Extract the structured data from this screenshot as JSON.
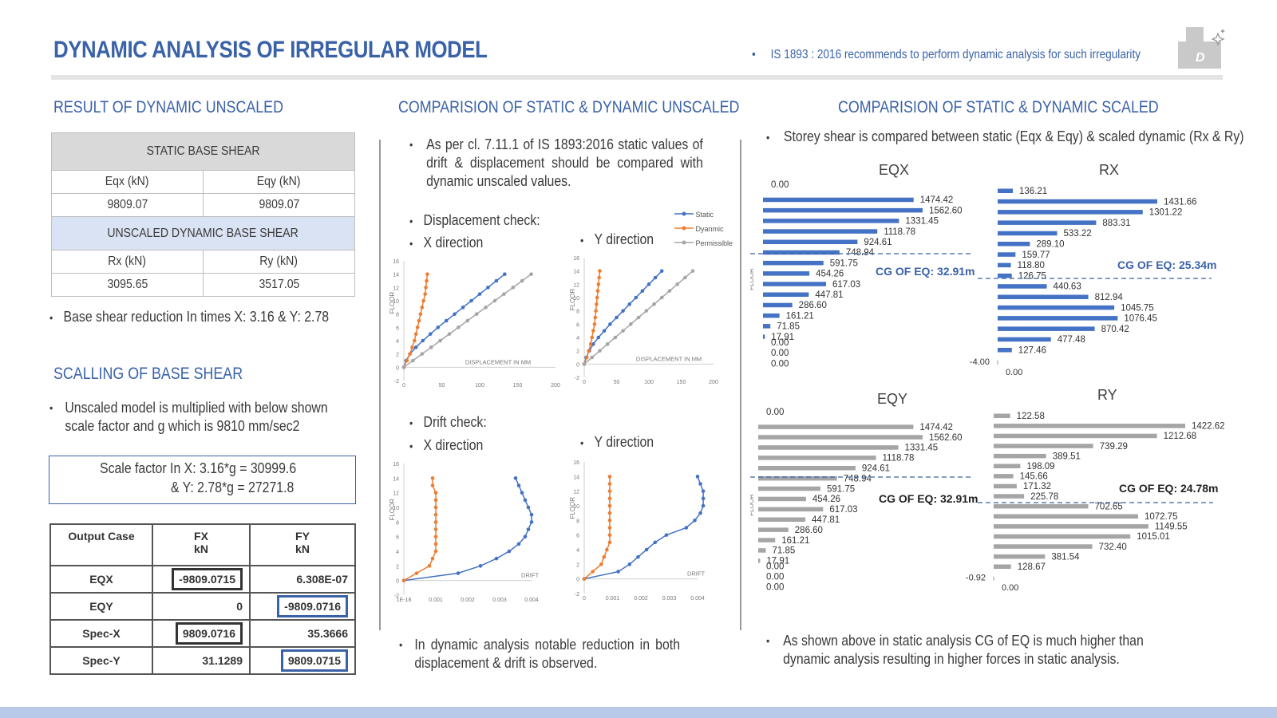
{
  "header": {
    "title": "DYNAMIC ANALYSIS OF IRREGULAR MODEL",
    "note": "IS 1893 : 2016 recommends to perform dynamic analysis for such irregularity",
    "logo_letter": "D"
  },
  "left": {
    "heading": "RESULT OF DYNAMIC UNSCALED",
    "static_header": "STATIC BASE SHEAR",
    "eqx_label": "Eqx (kN)",
    "eqy_label": "Eqy (kN)",
    "eqx_value": "9809.07",
    "eqy_value": "9809.07",
    "dyn_header": "UNSCALED DYNAMIC BASE SHEAR",
    "rx_label": "Rx (kN)",
    "ry_label": "Ry (kN)",
    "rx_value": "3095.65",
    "ry_value": "3517.05",
    "reduction_bullet": "Base shear reduction In times  X: 3.16  & Y: 2.78",
    "scaling_heading": "SCALLING OF BASE SHEAR",
    "scaling_bullet": "Unscaled model is multiplied with below shown scale factor and g which is 9810 mm/sec2",
    "scale_line1": "Scale factor In X: 3.16*g = 30999.6",
    "scale_line2": "& Y: 2.78*g = 27271.8",
    "output_table": {
      "headers": [
        "Output Case",
        "FX",
        "FY"
      ],
      "units": [
        "",
        "kN",
        "kN"
      ],
      "rows": [
        [
          "EQX",
          "-9809.0715",
          "6.308E-07"
        ],
        [
          "EQY",
          "0",
          "-9809.0716"
        ],
        [
          "Spec-X",
          "9809.0716",
          "35.3666"
        ],
        [
          "Spec-Y",
          "31.1289",
          "9809.0715"
        ]
      ]
    }
  },
  "middle": {
    "heading": "COMPARISION OF STATIC & DYNAMIC UNSCALED",
    "intro_bullet": "As per cl. 7.11.1 of IS 1893:2016 static values of drift & displacement should be compared with dynamic unscaled values.",
    "disp_heading": "Displacement check:",
    "x_dir": "X direction",
    "y_dir": "Y direction",
    "drift_heading": "Drift check:",
    "legend": [
      "Static",
      "Dyanmic",
      "Permissible"
    ],
    "floor_label": "FLOOR",
    "disp_axis": "DISPLACEMENT IN MM",
    "drift_axis": "DRIFT",
    "disp_yticks": [
      "16",
      "14",
      "12",
      "10",
      "8",
      "6",
      "4",
      "2",
      "0",
      "-2"
    ],
    "disp_xticks": [
      "0",
      "50",
      "100",
      "150",
      "200"
    ],
    "drift_xticks": [
      "0",
      "0.001",
      "0.002",
      "0.003",
      "0.004"
    ],
    "drift_x0_label": "1E-18",
    "bottom_bullet": "In dynamic analysis notable reduction in both displacement & drift is observed."
  },
  "right": {
    "heading": "COMPARISION OF STATIC & DYNAMIC SCALED",
    "intro_bullet": "Storey shear is compared between static (Eqx & Eqy) & scaled dynamic (Rx & Ry)",
    "floor_label": "FLOOR",
    "bottom_bullet": "As shown above in static analysis CG of EQ is much higher than dynamic analysis resulting in higher forces in static analysis.",
    "charts": {
      "eqx": {
        "title": "EQX",
        "cg": "CG OF EQ: 32.91m",
        "labels": [
          "0.00",
          "1474.42",
          "1562.60",
          "1331.45",
          "1118.78",
          "924.61",
          "748.94",
          "591.75",
          "454.26",
          "617.03",
          "447.81",
          "286.60",
          "161.21",
          "71.85",
          "17.91",
          "0.00",
          "0.00",
          "0.00"
        ]
      },
      "rx": {
        "title": "RX",
        "cg": "CG OF EQ: 25.34m",
        "axis_min": "-4.00",
        "axis_zero": "0.00",
        "labels": [
          "136.21",
          "1431.66",
          "1301.22",
          "883.31",
          "533.22",
          "289.10",
          "159.77",
          "118.80",
          "126.75",
          "440.63",
          "812.94",
          "1045.75",
          "1076.45",
          "870.42",
          "477.48",
          "127.46"
        ]
      },
      "eqy": {
        "title": "EQY",
        "cg": "CG OF EQ: 32.91m",
        "labels": [
          "0.00",
          "1474.42",
          "1562.60",
          "1331.45",
          "1118.78",
          "924.61",
          "748.94",
          "591.75",
          "454.26",
          "617.03",
          "447.81",
          "286.60",
          "161.21",
          "71.85",
          "17.91",
          "0.00",
          "0.00",
          "0.00"
        ]
      },
      "ry": {
        "title": "RY",
        "cg": "CG OF EQ: 24.78m",
        "axis_min": "-0.92",
        "axis_zero": "0.00",
        "labels": [
          "122.58",
          "1422.62",
          "1212.68",
          "739.29",
          "389.51",
          "198.09",
          "145.66",
          "171.32",
          "225.78",
          "702.65",
          "1072.75",
          "1149.55",
          "1015.01",
          "732.40",
          "381.54",
          "128.67"
        ]
      }
    }
  },
  "chart_data": [
    {
      "type": "line",
      "title": "Displacement check: X direction",
      "xlabel": "DISPLACEMENT IN MM",
      "ylabel": "FLOOR",
      "xlim": [
        0,
        200
      ],
      "ylim": [
        -2,
        16
      ],
      "series": [
        {
          "name": "Static",
          "x": [
            0,
            3,
            8,
            16,
            25,
            35,
            45,
            56,
            67,
            78,
            89,
            100,
            111,
            122,
            133
          ],
          "y": [
            0,
            1,
            2,
            3,
            4,
            5,
            6,
            7,
            8,
            9,
            10,
            11,
            12,
            13,
            14
          ]
        },
        {
          "name": "Dyanmic",
          "x": [
            0,
            4,
            8,
            11,
            14,
            16,
            18,
            20,
            22,
            24,
            26,
            28,
            29,
            30,
            31
          ],
          "y": [
            0,
            1,
            2,
            3,
            4,
            5,
            6,
            7,
            8,
            9,
            10,
            11,
            12,
            13,
            14
          ]
        },
        {
          "name": "Permissible",
          "x": [
            0,
            12,
            24,
            36,
            48,
            60,
            72,
            84,
            96,
            108,
            120,
            132,
            144,
            156,
            168
          ],
          "y": [
            0,
            1,
            2,
            3,
            4,
            5,
            6,
            7,
            8,
            9,
            10,
            11,
            12,
            13,
            14
          ]
        }
      ]
    },
    {
      "type": "line",
      "title": "Displacement check: Y direction",
      "xlabel": "DISPLACEMENT IN MM",
      "ylabel": "FLOOR",
      "xlim": [
        0,
        200
      ],
      "ylim": [
        -2,
        16
      ],
      "series": [
        {
          "name": "Static",
          "x": [
            0,
            3,
            8,
            14,
            22,
            31,
            40,
            50,
            60,
            70,
            80,
            90,
            100,
            110,
            120
          ],
          "y": [
            0,
            1,
            2,
            3,
            4,
            5,
            6,
            7,
            8,
            9,
            10,
            11,
            12,
            13,
            14
          ]
        },
        {
          "name": "Dyanmic",
          "x": [
            0,
            4,
            7,
            10,
            12,
            14,
            16,
            17,
            18,
            19,
            20,
            21,
            22,
            23,
            24
          ],
          "y": [
            0,
            1,
            2,
            3,
            4,
            5,
            6,
            7,
            8,
            9,
            10,
            11,
            12,
            13,
            14
          ]
        },
        {
          "name": "Permissible",
          "x": [
            0,
            12,
            24,
            36,
            48,
            60,
            72,
            84,
            96,
            108,
            120,
            132,
            144,
            156,
            168
          ],
          "y": [
            0,
            1,
            2,
            3,
            4,
            5,
            6,
            7,
            8,
            9,
            10,
            11,
            12,
            13,
            14
          ]
        }
      ]
    },
    {
      "type": "line",
      "title": "Drift check: X direction",
      "xlabel": "DRIFT",
      "ylabel": "FLOOR",
      "xlim": [
        0,
        0.004
      ],
      "ylim": [
        -2,
        16
      ],
      "series": [
        {
          "name": "Static",
          "x": [
            0,
            0.0017,
            0.0024,
            0.0029,
            0.0033,
            0.0036,
            0.0038,
            0.0039,
            0.004,
            0.004,
            0.0039,
            0.0038,
            0.0037,
            0.0036,
            0.0035
          ],
          "y": [
            0,
            1,
            2,
            3,
            4,
            5,
            6,
            7,
            8,
            9,
            10,
            11,
            12,
            13,
            14
          ]
        },
        {
          "name": "Dyanmic",
          "x": [
            0,
            0.0004,
            0.0008,
            0.0009,
            0.001,
            0.001,
            0.001,
            0.001,
            0.001,
            0.001,
            0.001,
            0.001,
            0.001,
            0.0009,
            0.0009
          ],
          "y": [
            0,
            1,
            2,
            3,
            4,
            5,
            6,
            7,
            8,
            9,
            10,
            11,
            12,
            13,
            14
          ]
        }
      ]
    },
    {
      "type": "line",
      "title": "Drift check: Y direction",
      "xlabel": "DRIFT",
      "ylabel": "FLOOR",
      "xlim": [
        0,
        0.004
      ],
      "ylim": [
        -2,
        16
      ],
      "series": [
        {
          "name": "Static",
          "x": [
            0,
            0.0012,
            0.0016,
            0.0019,
            0.0022,
            0.0025,
            0.0029,
            0.0036,
            0.0039,
            0.0041,
            0.0042,
            0.0042,
            0.0042,
            0.0041,
            0.004
          ],
          "y": [
            0,
            1,
            2,
            3,
            4,
            5,
            6,
            7,
            8,
            9,
            10,
            11,
            12,
            13,
            14
          ]
        },
        {
          "name": "Dyanmic",
          "x": [
            0,
            0.0003,
            0.0006,
            0.0007,
            0.0008,
            0.0009,
            0.0009,
            0.0009,
            0.0009,
            0.0009,
            0.0009,
            0.0009,
            0.0009,
            0.0009,
            0.0009
          ],
          "y": [
            0,
            1,
            2,
            3,
            4,
            5,
            6,
            7,
            8,
            9,
            10,
            11,
            12,
            13,
            14
          ]
        }
      ]
    },
    {
      "type": "bar",
      "title": "EQX",
      "values": [
        0,
        1474.42,
        1562.6,
        1331.45,
        1118.78,
        924.61,
        748.94,
        591.75,
        454.26,
        617.03,
        447.81,
        286.6,
        161.21,
        71.85,
        17.91,
        0,
        0,
        0
      ]
    },
    {
      "type": "bar",
      "title": "RX",
      "values": [
        136.21,
        1431.66,
        1301.22,
        883.31,
        533.22,
        289.1,
        159.77,
        118.8,
        126.75,
        440.63,
        812.94,
        1045.75,
        1076.45,
        870.42,
        477.48,
        127.46
      ]
    },
    {
      "type": "bar",
      "title": "EQY",
      "values": [
        0,
        1474.42,
        1562.6,
        1331.45,
        1118.78,
        924.61,
        748.94,
        591.75,
        454.26,
        617.03,
        447.81,
        286.6,
        161.21,
        71.85,
        17.91,
        0,
        0,
        0
      ]
    },
    {
      "type": "bar",
      "title": "RY",
      "values": [
        122.58,
        1422.62,
        1212.68,
        739.29,
        389.51,
        198.09,
        145.66,
        171.32,
        225.78,
        702.65,
        1072.75,
        1149.55,
        1015.01,
        732.4,
        381.54,
        128.67
      ]
    }
  ],
  "colors": {
    "static": "#4472c4",
    "dynamic": "#ed7d31",
    "permissible": "#a5a5a5",
    "accent": "#3a62a8"
  }
}
